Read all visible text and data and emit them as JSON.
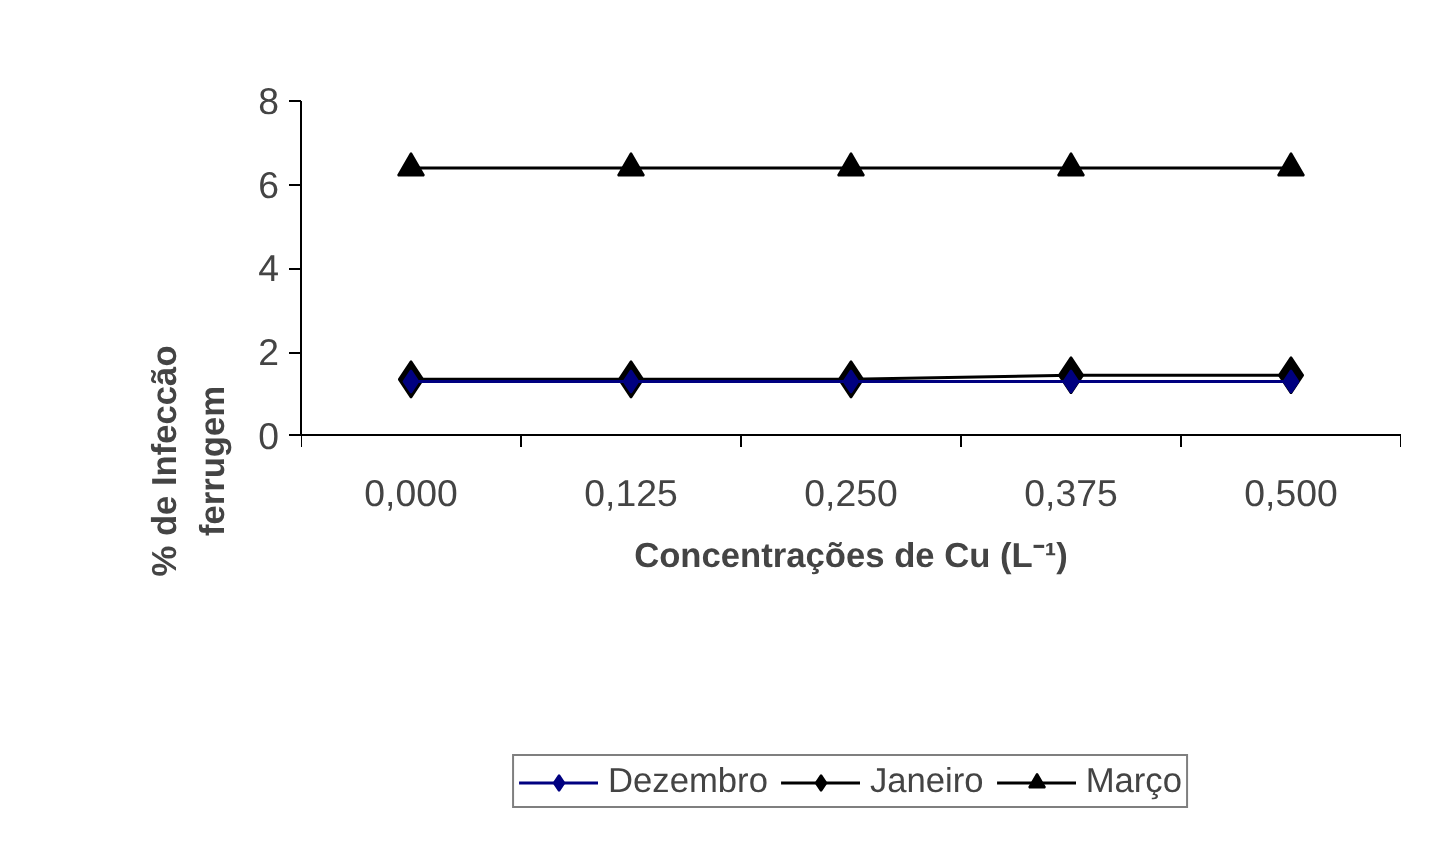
{
  "chart_data": {
    "type": "line",
    "xlabel": "Concentrações de Cu (L⁻¹)",
    "ylabel": "% de Infeccão\nferrugem",
    "categories": [
      "0,000",
      "0,125",
      "0,250",
      "0,375",
      "0,500"
    ],
    "ylim": [
      0,
      8
    ],
    "yticks": [
      0,
      2,
      4,
      6,
      8
    ],
    "grid": false,
    "legend": "bottom",
    "line_style": "solid",
    "series": [
      {
        "name": "Dezembro",
        "color": "#000080",
        "marker": "diamond",
        "values": [
          1.3,
          1.3,
          1.3,
          1.3,
          1.3
        ]
      },
      {
        "name": "Janeiro",
        "color": "#000000",
        "marker": "diamond",
        "values": [
          1.35,
          1.35,
          1.35,
          1.45,
          1.45
        ]
      },
      {
        "name": "Março",
        "color": "#000000",
        "marker": "triangle",
        "values": [
          6.4,
          6.4,
          6.4,
          6.4,
          6.4
        ]
      }
    ]
  }
}
